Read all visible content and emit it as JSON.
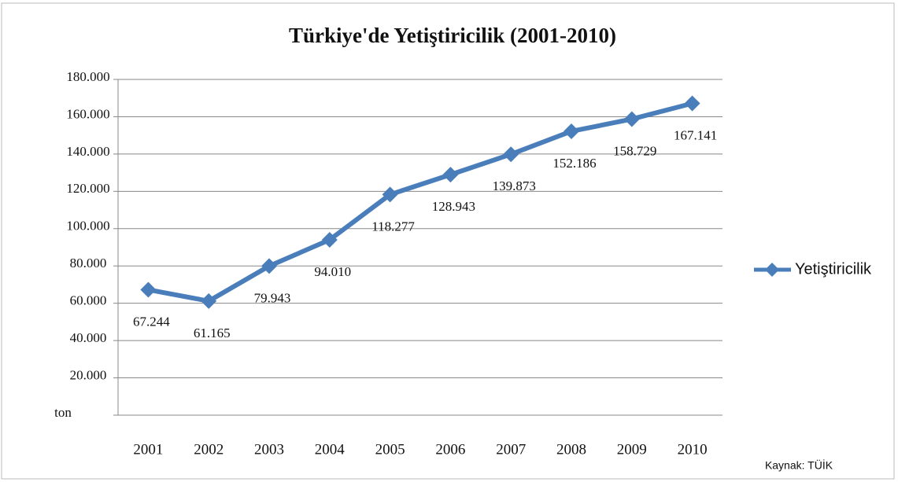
{
  "chart_data": {
    "type": "line",
    "title": "Türkiye'de Yetiştiricilik (2001-2010)",
    "source": "Kaynak: TÜİK",
    "categories": [
      "2001",
      "2002",
      "2003",
      "2004",
      "2005",
      "2006",
      "2007",
      "2008",
      "2009",
      "2010"
    ],
    "series": [
      {
        "name": "Yetiştiricilik",
        "color": "#4a7ebb",
        "values": [
          67244,
          61165,
          79943,
          94010,
          118277,
          128943,
          139873,
          152186,
          158729,
          167141
        ],
        "value_labels": [
          "67.244",
          "61.165",
          "79.943",
          "94.010",
          "118.277",
          "128.943",
          "139.873",
          "152.186",
          "158.729",
          "167.141"
        ]
      }
    ],
    "ylim": [
      0,
      180000
    ],
    "yticks": [
      {
        "value": 0,
        "label": "ton"
      },
      {
        "value": 20000,
        "label": "20.000"
      },
      {
        "value": 40000,
        "label": "40.000"
      },
      {
        "value": 60000,
        "label": "60.000"
      },
      {
        "value": 80000,
        "label": "80.000"
      },
      {
        "value": 100000,
        "label": "100.000"
      },
      {
        "value": 120000,
        "label": "120.000"
      },
      {
        "value": 140000,
        "label": "140.000"
      },
      {
        "value": 160000,
        "label": "160.000"
      },
      {
        "value": 180000,
        "label": "180.000"
      }
    ],
    "grid": true,
    "legend": "right"
  }
}
